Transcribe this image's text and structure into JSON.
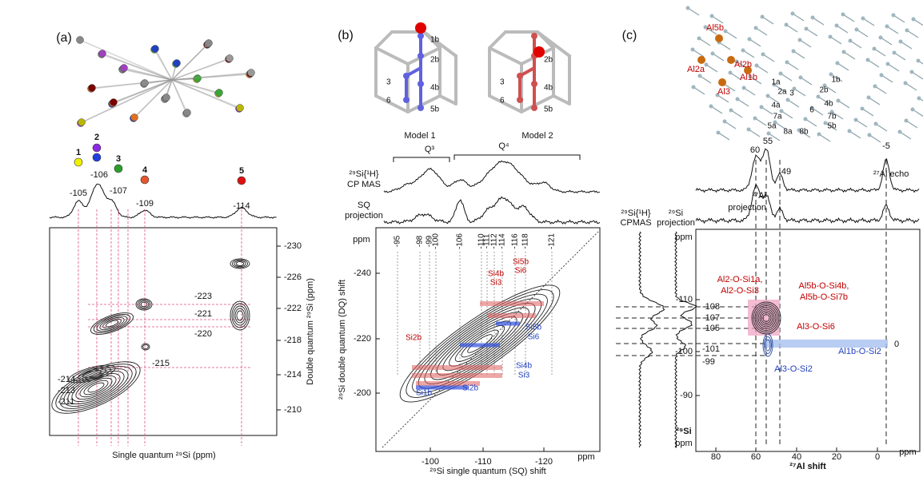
{
  "panel_a": {
    "label": "(a)",
    "peaks": [
      {
        "number": "1",
        "shift": "-105"
      },
      {
        "number": "2",
        "shift": "-106"
      },
      {
        "number": "3",
        "shift": "-107"
      },
      {
        "number": "4",
        "shift": "-109"
      },
      {
        "number": "5",
        "shift": "-114"
      }
    ],
    "dq_labels": [
      "-223",
      "-221",
      "-220",
      "-215",
      "-214",
      "-213",
      "-211"
    ],
    "y_ticks": [
      "-230",
      "-226",
      "-222",
      "-218",
      "-214",
      "-210"
    ],
    "y_axis_title": "Double quantum ²⁹Si (ppm)",
    "x_axis_title": "Single quantum ²⁹Si (ppm)"
  },
  "panel_b": {
    "label": "(b)",
    "model_1": {
      "name": "Model 1",
      "atoms": [
        "1b",
        "2b",
        "3",
        "6",
        "4b",
        "5b"
      ]
    },
    "model_2": {
      "name": "Model 2",
      "atoms": [
        "2b",
        "3",
        "6",
        "4b",
        "5b"
      ]
    },
    "q3": "Q³",
    "q4": "Q⁴",
    "cp_mas_label": [
      "²⁹Si{¹H}",
      "CP MAS"
    ],
    "sq_label": [
      "SQ",
      "projection"
    ],
    "peak_labels": [
      "-95",
      "-98",
      "-99",
      "-100",
      "-106",
      "-110",
      "-111",
      "-112",
      "-114",
      "-116",
      "-118",
      "-121"
    ],
    "y_unit": "ppm",
    "y_ticks": [
      "-240",
      "-220",
      "-200"
    ],
    "x_ticks": [
      "-100",
      "-110",
      "-120"
    ],
    "x_unit": "ppm",
    "y_axis_title": "²⁹Si double quantum (DQ) shift",
    "x_axis_title": "²⁹Si single quantum (SQ) shift",
    "red_labels": [
      [
        "Si4b",
        "Si3"
      ],
      [
        "Si5b",
        "Si6"
      ],
      [
        "Si2b"
      ]
    ],
    "blue_labels": [
      [
        "Si5b",
        "Si6"
      ],
      [
        "Si4b",
        "Si3"
      ],
      [
        "Si1b"
      ],
      [
        "Si2b"
      ]
    ]
  },
  "panel_c": {
    "label": "(c)",
    "al_sites": [
      "Al5b",
      "Al2a",
      "Al2b",
      "Al1b",
      "Al3"
    ],
    "si_sites": [
      "1a",
      "2a",
      "3",
      "2b",
      "1b",
      "4a",
      "4b",
      "7a",
      "6",
      "7b",
      "5a",
      "8a",
      "8b",
      "5b"
    ],
    "top_peaks": [
      "60",
      "55",
      "49",
      "-5"
    ],
    "echo_label": "²⁷Al echo",
    "al_projection_label": [
      "²⁷Al",
      "projection"
    ],
    "cpmas_label": [
      "²⁹Si{¹H}",
      "CPMAS"
    ],
    "si_projection_label": [
      "²⁹Si",
      "projection"
    ],
    "y_unit": "ppm",
    "y_ticks": [
      "-110",
      "-100",
      "-90"
    ],
    "y_axis_title": [
      "²⁹Si",
      "ppm"
    ],
    "si_shift_labels": [
      "-108",
      "-107",
      "-105",
      "-101",
      "-99"
    ],
    "right_label": "0",
    "red_annotations": [
      [
        "Al2-O-Si1a,",
        "Al2-O-Si3"
      ],
      [
        "Al5b-O-Si4b,",
        "Al5b-O-Si7b"
      ],
      [
        "Al3-O-Si6"
      ]
    ],
    "blue_annotations": [
      "Al1b-O-Si2",
      "Al3-O-Si2"
    ],
    "x_ticks": [
      "80",
      "60",
      "40",
      "20",
      "0"
    ],
    "x_unit": "ppm",
    "x_axis_title": "²⁷Al shift"
  }
}
